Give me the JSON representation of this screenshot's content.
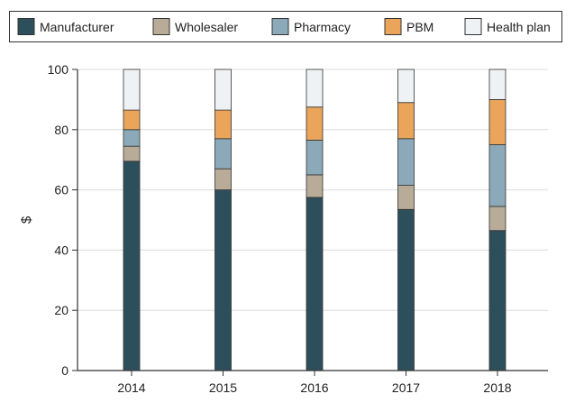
{
  "chart_data": {
    "type": "bar",
    "stacked": true,
    "title": "",
    "xlabel": "",
    "ylabel": "$",
    "ylim": [
      0,
      100
    ],
    "yticks": [
      0,
      20,
      40,
      60,
      80,
      100
    ],
    "grid": true,
    "legend_position": "top",
    "categories": [
      "2014",
      "2015",
      "2016",
      "2017",
      "2018"
    ],
    "series": [
      {
        "name": "Manufacturer",
        "color": "#2d4f5c",
        "values": [
          69.5,
          60,
          57.5,
          53.5,
          46.5
        ]
      },
      {
        "name": "Wholesaler",
        "color": "#b8ab98",
        "values": [
          5,
          7,
          7.5,
          8,
          8
        ]
      },
      {
        "name": "Pharmacy",
        "color": "#8ba9b9",
        "values": [
          5.5,
          10,
          11.5,
          15.5,
          20.5
        ]
      },
      {
        "name": "PBM",
        "color": "#eaa55a",
        "values": [
          6.5,
          9.5,
          11,
          12,
          15
        ]
      },
      {
        "name": "Health plan",
        "color": "#eef2f5",
        "values": [
          13.5,
          13.5,
          12.5,
          11,
          10
        ]
      }
    ]
  }
}
